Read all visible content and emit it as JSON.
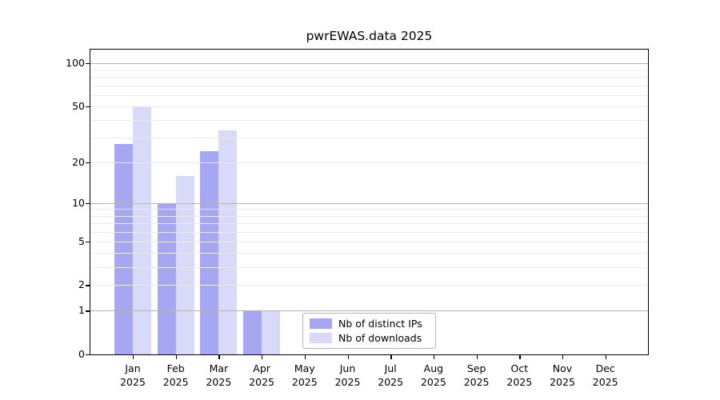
{
  "chart_data": {
    "type": "bar",
    "title": "pwrEWAS.data 2025",
    "categories": [
      "Jan",
      "Feb",
      "Mar",
      "Apr",
      "May",
      "Jun",
      "Jul",
      "Aug",
      "Sep",
      "Oct",
      "Nov",
      "Dec"
    ],
    "category_year": "2025",
    "series": [
      {
        "name": "Nb of distinct IPs",
        "color": "#a6a6f2",
        "values": [
          27,
          10,
          24,
          1,
          0,
          0,
          0,
          0,
          0,
          0,
          0,
          0
        ]
      },
      {
        "name": "Nb of downloads",
        "color": "#d9d9fa",
        "values": [
          50,
          16,
          34,
          1,
          0,
          0,
          0,
          0,
          0,
          0,
          0,
          0
        ]
      }
    ],
    "scale": "log1p",
    "ylim": [
      0,
      125
    ],
    "y_axis": {
      "tick_values": [
        0,
        1,
        2,
        5,
        10,
        20,
        50,
        100
      ]
    },
    "grid": {
      "on": true,
      "major_values": [
        1,
        10,
        100
      ],
      "minor_values": [
        2,
        3,
        4,
        5,
        6,
        7,
        8,
        9,
        20,
        30,
        40,
        50,
        60,
        70,
        80,
        90
      ],
      "major_color": "#b3b3b3",
      "minor_color": "#eaeaea"
    },
    "legend": {
      "position": "bottom-center"
    }
  }
}
